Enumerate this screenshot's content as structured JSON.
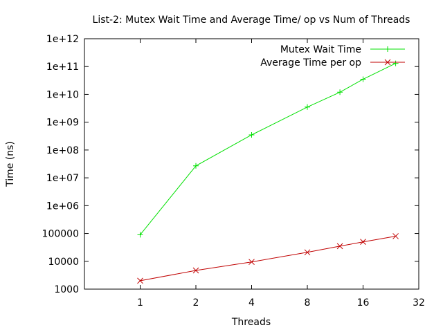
{
  "chart_data": {
    "type": "line",
    "title": "List-2: Mutex Wait Time and Average Time/ op vs Num of Threads",
    "xlabel": "Threads",
    "ylabel": "Time (ns)",
    "x_scale": "log2",
    "y_scale": "log10",
    "xlim": [
      0.5,
      32
    ],
    "ylim": [
      1000,
      1000000000000
    ],
    "x_ticks": [
      1,
      2,
      4,
      8,
      16,
      32
    ],
    "x_tick_labels": [
      "1",
      "2",
      "4",
      "8",
      "16",
      "32"
    ],
    "y_ticks": [
      1000,
      10000,
      100000,
      1000000,
      10000000,
      100000000,
      1000000000,
      10000000000,
      100000000000,
      1000000000000
    ],
    "y_tick_labels": [
      "1000",
      "10000",
      "100000",
      "1e+06",
      "1e+07",
      "1e+08",
      "1e+09",
      "1e+10",
      "1e+11",
      "1e+12"
    ],
    "grid": false,
    "legend_position": "top-right",
    "series": [
      {
        "name": "Mutex Wait Time",
        "color": "#00e000",
        "marker": "plus",
        "x": [
          1,
          2,
          4,
          8,
          12,
          16,
          24
        ],
        "y": [
          90000,
          27000000,
          350000000,
          3500000000,
          12000000000,
          35000000000,
          130000000000
        ]
      },
      {
        "name": "Average Time per op",
        "color": "#c00000",
        "marker": "cross",
        "x": [
          1,
          2,
          4,
          8,
          12,
          16,
          24
        ],
        "y": [
          2000,
          4700,
          9500,
          21000,
          35000,
          50000,
          80000
        ]
      }
    ]
  }
}
